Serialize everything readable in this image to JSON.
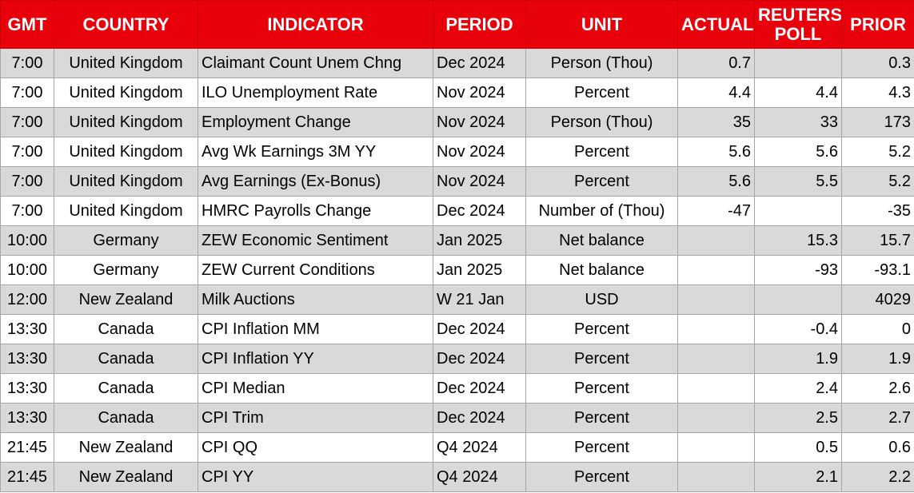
{
  "headers": {
    "gmt": "GMT",
    "country": "COUNTRY",
    "indicator": "INDICATOR",
    "period": "PERIOD",
    "unit": "UNIT",
    "actual": "ACTUAL",
    "poll_line1": "REUTERS",
    "poll_line2": "POLL",
    "prior": "PRIOR"
  },
  "colors": {
    "header_bg": "#e8000b",
    "header_text": "#ffffff",
    "row_shade": "#d9d9d9",
    "row_plain": "#ffffff"
  },
  "rows": [
    {
      "gmt": "7:00",
      "country": "United Kingdom",
      "indicator": "Claimant Count Unem Chng",
      "period": "Dec 2024",
      "unit": "Person (Thou)",
      "actual": "0.7",
      "poll": "",
      "prior": "0.3"
    },
    {
      "gmt": "7:00",
      "country": "United Kingdom",
      "indicator": "ILO Unemployment Rate",
      "period": "Nov 2024",
      "unit": "Percent",
      "actual": "4.4",
      "poll": "4.4",
      "prior": "4.3"
    },
    {
      "gmt": "7:00",
      "country": "United Kingdom",
      "indicator": "Employment Change",
      "period": "Nov 2024",
      "unit": "Person (Thou)",
      "actual": "35",
      "poll": "33",
      "prior": "173"
    },
    {
      "gmt": "7:00",
      "country": "United Kingdom",
      "indicator": "Avg Wk Earnings 3M YY",
      "period": "Nov 2024",
      "unit": "Percent",
      "actual": "5.6",
      "poll": "5.6",
      "prior": "5.2"
    },
    {
      "gmt": "7:00",
      "country": "United Kingdom",
      "indicator": "Avg Earnings (Ex-Bonus)",
      "period": "Nov 2024",
      "unit": "Percent",
      "actual": "5.6",
      "poll": "5.5",
      "prior": "5.2"
    },
    {
      "gmt": "7:00",
      "country": "United Kingdom",
      "indicator": "HMRC Payrolls Change",
      "period": "Dec 2024",
      "unit": "Number of (Thou)",
      "actual": "-47",
      "poll": "",
      "prior": "-35"
    },
    {
      "gmt": "10:00",
      "country": "Germany",
      "indicator": "ZEW Economic Sentiment",
      "period": "Jan 2025",
      "unit": "Net balance",
      "actual": "",
      "poll": "15.3",
      "prior": "15.7"
    },
    {
      "gmt": "10:00",
      "country": "Germany",
      "indicator": "ZEW Current Conditions",
      "period": "Jan 2025",
      "unit": "Net balance",
      "actual": "",
      "poll": "-93",
      "prior": "-93.1"
    },
    {
      "gmt": "12:00",
      "country": "New Zealand",
      "indicator": "Milk Auctions",
      "period": "W 21 Jan",
      "unit": "USD",
      "actual": "",
      "poll": "",
      "prior": "4029"
    },
    {
      "gmt": "13:30",
      "country": "Canada",
      "indicator": "CPI Inflation MM",
      "period": "Dec 2024",
      "unit": "Percent",
      "actual": "",
      "poll": "-0.4",
      "prior": "0"
    },
    {
      "gmt": "13:30",
      "country": "Canada",
      "indicator": "CPI Inflation YY",
      "period": "Dec 2024",
      "unit": "Percent",
      "actual": "",
      "poll": "1.9",
      "prior": "1.9"
    },
    {
      "gmt": "13:30",
      "country": "Canada",
      "indicator": "CPI Median",
      "period": "Dec 2024",
      "unit": "Percent",
      "actual": "",
      "poll": "2.4",
      "prior": "2.6"
    },
    {
      "gmt": "13:30",
      "country": "Canada",
      "indicator": "CPI Trim",
      "period": "Dec 2024",
      "unit": "Percent",
      "actual": "",
      "poll": "2.5",
      "prior": "2.7"
    },
    {
      "gmt": "21:45",
      "country": "New Zealand",
      "indicator": "CPI QQ",
      "period": "Q4 2024",
      "unit": "Percent",
      "actual": "",
      "poll": "0.5",
      "prior": "0.6"
    },
    {
      "gmt": "21:45",
      "country": "New Zealand",
      "indicator": "CPI YY",
      "period": "Q4 2024",
      "unit": "Percent",
      "actual": "",
      "poll": "2.1",
      "prior": "2.2"
    }
  ]
}
